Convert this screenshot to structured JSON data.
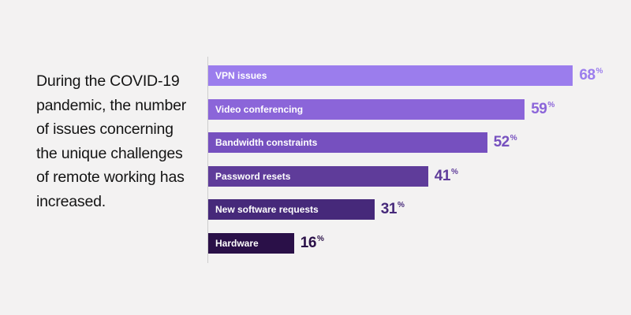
{
  "headline": "During the COVID-19 pandemic, the number of issues concerning the unique challenges of remote working has increased.",
  "chart_data": {
    "type": "bar",
    "orientation": "horizontal",
    "categories": [
      "VPN issues",
      "Video conferencing",
      "Bandwidth constraints",
      "Password resets",
      "New software requests",
      "Hardware"
    ],
    "values": [
      68,
      59,
      52,
      41,
      31,
      16
    ],
    "unit": "%",
    "xlim": [
      0,
      100
    ],
    "grid": false,
    "colors": [
      "#9b7ded",
      "#8b65d9",
      "#7650bf",
      "#5f3c9a",
      "#46297a",
      "#2a1048"
    ]
  }
}
